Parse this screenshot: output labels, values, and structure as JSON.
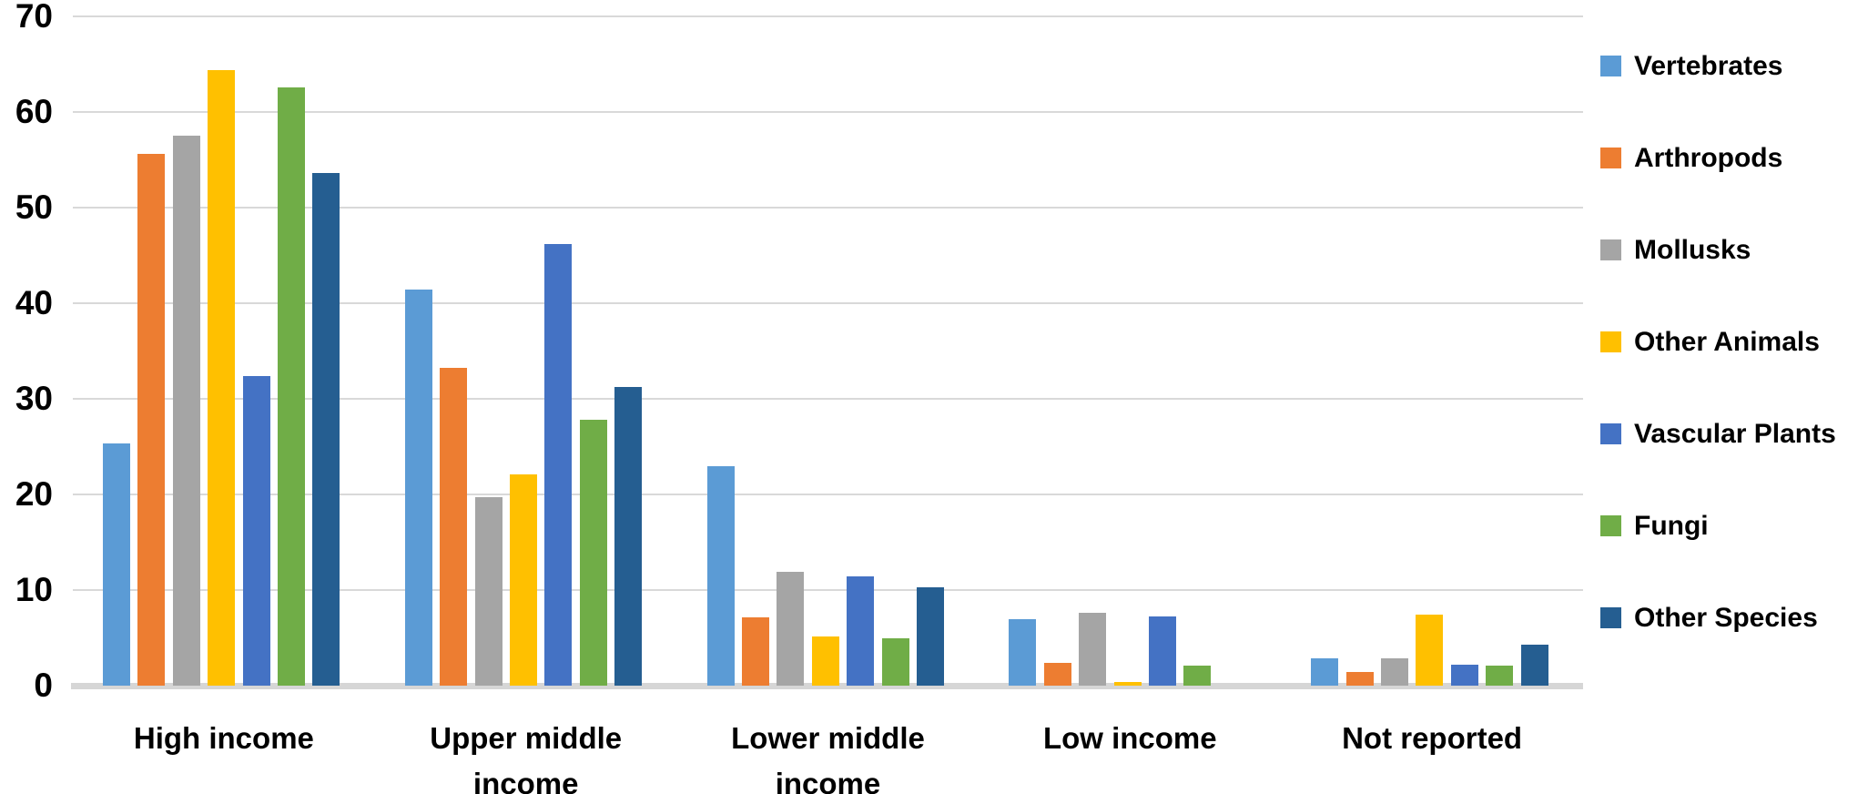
{
  "chart_data": {
    "type": "bar",
    "title": "",
    "categories": [
      "High income",
      "Upper middle income",
      "Lower middle income",
      "Low income",
      "Not reported"
    ],
    "category_label_lines": [
      [
        "High income"
      ],
      [
        "Upper middle",
        "income"
      ],
      [
        "Lower middle",
        "income"
      ],
      [
        "Low income"
      ],
      [
        "Not reported"
      ]
    ],
    "series": [
      {
        "name": "Vertebrates",
        "color": "#5B9BD5",
        "values": [
          25.3,
          41.4,
          23.0,
          7.0,
          2.9
        ]
      },
      {
        "name": "Arthropods",
        "color": "#ED7D31",
        "values": [
          55.6,
          33.2,
          7.1,
          2.4,
          1.4
        ]
      },
      {
        "name": "Mollusks",
        "color": "#A5A5A5",
        "values": [
          57.5,
          19.7,
          11.9,
          7.6,
          2.9
        ]
      },
      {
        "name": "Other Animals",
        "color": "#FFC000",
        "values": [
          64.4,
          22.1,
          5.1,
          0.4,
          7.4
        ]
      },
      {
        "name": "Vascular Plants",
        "color": "#4472C4",
        "values": [
          32.4,
          46.2,
          11.4,
          7.2,
          2.2
        ]
      },
      {
        "name": "Fungi",
        "color": "#70AD47",
        "values": [
          62.6,
          27.8,
          5.0,
          2.1,
          2.1
        ]
      },
      {
        "name": "Other Species",
        "color": "#255E91",
        "values": [
          53.6,
          31.2,
          10.3,
          0.0,
          4.3
        ]
      }
    ],
    "ylabel": "",
    "xlabel": "",
    "ylim": [
      0,
      70
    ],
    "yticks": [
      0,
      10,
      20,
      30,
      40,
      50,
      60,
      70
    ],
    "grid": true,
    "legend_position": "right",
    "colors": {
      "gridline": "#d9d9d9",
      "axis_line": "#d6d6d6",
      "text": "#000000",
      "background": "#ffffff"
    }
  }
}
